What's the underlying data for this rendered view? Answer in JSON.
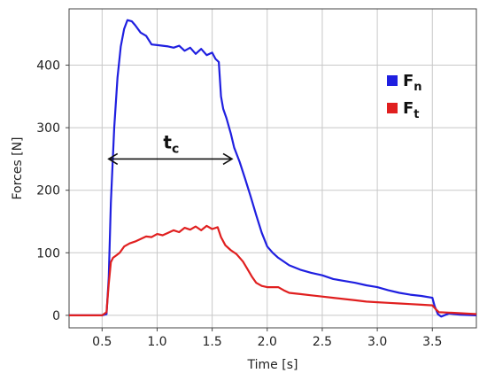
{
  "chart_data": {
    "type": "line",
    "xlabel": "Time [s]",
    "ylabel": "Forces [N]",
    "xlim": [
      0.2,
      3.9
    ],
    "ylim": [
      -20,
      490
    ],
    "xticks": [
      0.5,
      1.0,
      1.5,
      2.0,
      2.5,
      3.0,
      3.5
    ],
    "xtick_labels": [
      "0.5",
      "1.0",
      "1.5",
      "2.0",
      "2.5",
      "3.0",
      "3.5"
    ],
    "yticks": [
      0,
      100,
      200,
      300,
      400
    ],
    "ytick_labels": [
      "0",
      "100",
      "200",
      "300",
      "400"
    ],
    "grid": true,
    "legend_position": "right",
    "series": [
      {
        "name": "F",
        "subscript": "n",
        "color": "#1f1fe0",
        "points": [
          [
            0.2,
            0
          ],
          [
            0.5,
            0
          ],
          [
            0.54,
            2
          ],
          [
            0.56,
            60
          ],
          [
            0.58,
            180
          ],
          [
            0.61,
            300
          ],
          [
            0.64,
            380
          ],
          [
            0.67,
            430
          ],
          [
            0.7,
            458
          ],
          [
            0.73,
            472
          ],
          [
            0.77,
            470
          ],
          [
            0.8,
            464
          ],
          [
            0.85,
            452
          ],
          [
            0.9,
            447
          ],
          [
            0.95,
            433
          ],
          [
            1.0,
            432
          ],
          [
            1.05,
            431
          ],
          [
            1.1,
            430
          ],
          [
            1.15,
            428
          ],
          [
            1.2,
            431
          ],
          [
            1.25,
            423
          ],
          [
            1.3,
            428
          ],
          [
            1.35,
            418
          ],
          [
            1.4,
            426
          ],
          [
            1.45,
            416
          ],
          [
            1.5,
            420
          ],
          [
            1.53,
            410
          ],
          [
            1.56,
            405
          ],
          [
            1.58,
            350
          ],
          [
            1.6,
            330
          ],
          [
            1.63,
            315
          ],
          [
            1.67,
            290
          ],
          [
            1.7,
            268
          ],
          [
            1.75,
            245
          ],
          [
            1.8,
            218
          ],
          [
            1.85,
            190
          ],
          [
            1.9,
            160
          ],
          [
            1.95,
            132
          ],
          [
            2.0,
            110
          ],
          [
            2.05,
            100
          ],
          [
            2.1,
            92
          ],
          [
            2.2,
            80
          ],
          [
            2.3,
            73
          ],
          [
            2.4,
            68
          ],
          [
            2.5,
            64
          ],
          [
            2.6,
            58
          ],
          [
            2.7,
            55
          ],
          [
            2.8,
            52
          ],
          [
            2.9,
            48
          ],
          [
            3.0,
            45
          ],
          [
            3.1,
            40
          ],
          [
            3.2,
            36
          ],
          [
            3.3,
            33
          ],
          [
            3.4,
            31
          ],
          [
            3.5,
            28
          ],
          [
            3.52,
            15
          ],
          [
            3.55,
            2
          ],
          [
            3.58,
            -2
          ],
          [
            3.65,
            3
          ],
          [
            3.75,
            1
          ],
          [
            3.9,
            0
          ]
        ]
      },
      {
        "name": "F",
        "subscript": "t",
        "color": "#e01f1f",
        "points": [
          [
            0.2,
            0
          ],
          [
            0.5,
            0
          ],
          [
            0.54,
            5
          ],
          [
            0.56,
            50
          ],
          [
            0.58,
            85
          ],
          [
            0.6,
            92
          ],
          [
            0.63,
            96
          ],
          [
            0.66,
            100
          ],
          [
            0.7,
            110
          ],
          [
            0.75,
            115
          ],
          [
            0.8,
            118
          ],
          [
            0.85,
            122
          ],
          [
            0.9,
            126
          ],
          [
            0.95,
            125
          ],
          [
            1.0,
            130
          ],
          [
            1.05,
            128
          ],
          [
            1.1,
            132
          ],
          [
            1.15,
            136
          ],
          [
            1.2,
            133
          ],
          [
            1.25,
            140
          ],
          [
            1.3,
            137
          ],
          [
            1.35,
            142
          ],
          [
            1.4,
            136
          ],
          [
            1.45,
            143
          ],
          [
            1.5,
            138
          ],
          [
            1.55,
            141
          ],
          [
            1.58,
            125
          ],
          [
            1.62,
            112
          ],
          [
            1.67,
            104
          ],
          [
            1.72,
            98
          ],
          [
            1.78,
            86
          ],
          [
            1.82,
            74
          ],
          [
            1.86,
            62
          ],
          [
            1.9,
            52
          ],
          [
            1.95,
            47
          ],
          [
            2.0,
            45
          ],
          [
            2.1,
            45
          ],
          [
            2.15,
            40
          ],
          [
            2.2,
            36
          ],
          [
            2.3,
            34
          ],
          [
            2.4,
            32
          ],
          [
            2.5,
            30
          ],
          [
            2.6,
            28
          ],
          [
            2.7,
            26
          ],
          [
            2.8,
            24
          ],
          [
            2.9,
            22
          ],
          [
            3.0,
            21
          ],
          [
            3.1,
            20
          ],
          [
            3.2,
            19
          ],
          [
            3.3,
            18
          ],
          [
            3.4,
            17
          ],
          [
            3.5,
            16
          ],
          [
            3.53,
            10
          ],
          [
            3.56,
            5
          ],
          [
            3.7,
            4
          ],
          [
            3.9,
            2
          ]
        ]
      }
    ],
    "annotations": [
      {
        "type": "double-arrow",
        "label": "t",
        "subscript": "c",
        "x_start": 0.56,
        "x_end": 1.68,
        "y": 250
      }
    ]
  }
}
